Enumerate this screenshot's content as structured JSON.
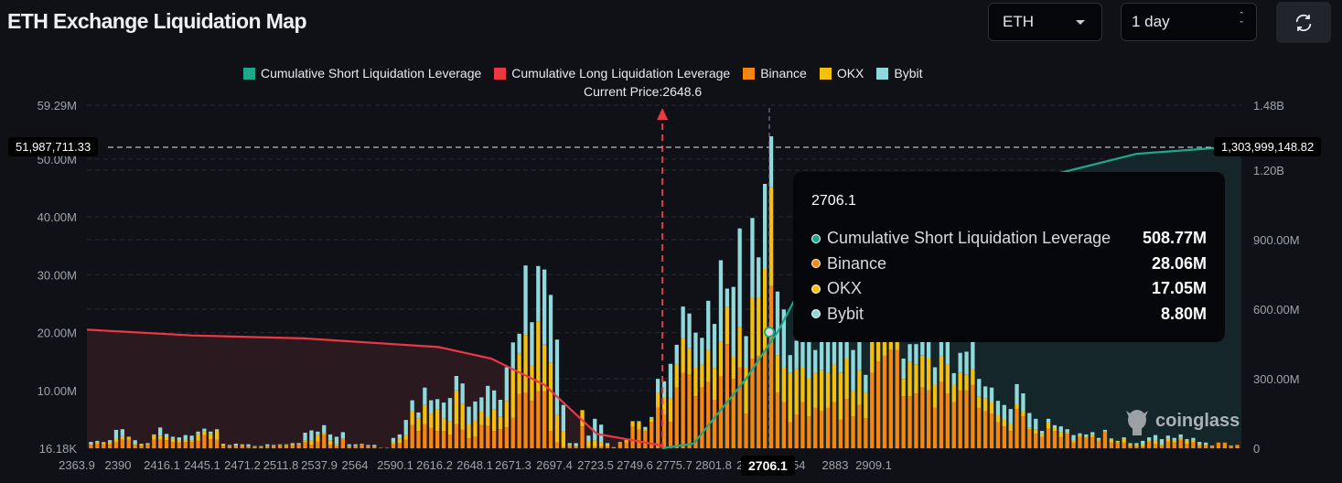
{
  "header": {
    "title": "ETH Exchange Liquidation Map",
    "symbol_select": "ETH",
    "range_select": "1 day",
    "refresh_icon": "refresh-icon"
  },
  "colors": {
    "short": "#1ea88a",
    "long": "#ea3943",
    "binance": "#f7860e",
    "okx": "#f5c00c",
    "bybit": "#8fd8dc",
    "background": "#0f1117"
  },
  "legend": [
    {
      "label": "Cumulative Short Liquidation Leverage",
      "color": "#1ea88a"
    },
    {
      "label": "Cumulative Long Liquidation Leverage",
      "color": "#ea3943"
    },
    {
      "label": "Binance",
      "color": "#f7860e"
    },
    {
      "label": "OKX",
      "color": "#f5c00c"
    },
    {
      "label": "Bybit",
      "color": "#8fd8dc"
    }
  ],
  "current_price_label": "Current Price:2648.6",
  "crosshair": {
    "left_value": "51,987,711.33",
    "right_value": "1,303,999,148.82",
    "x_value": "2706.1"
  },
  "tooltip": {
    "title": "2706.1",
    "rows": [
      {
        "label": "Cumulative Short Liquidation Leverage",
        "value": "508.77M",
        "color": "#1ea88a"
      },
      {
        "label": "Binance",
        "value": "28.06M",
        "color": "#f7860e"
      },
      {
        "label": "OKX",
        "value": "17.05M",
        "color": "#f5c00c"
      },
      {
        "label": "Bybit",
        "value": "8.80M",
        "color": "#8fd8dc"
      }
    ]
  },
  "watermark": "coinglass",
  "chart_data": {
    "type": "bar",
    "title": "ETH Exchange Liquidation Map",
    "xlabel": "Price",
    "ylabel_left": "Liquidation Leverage",
    "ylabel_right": "Cumulative Liquidation Leverage",
    "current_price": 2648.6,
    "x_range": [
      2363.9,
      2935.0
    ],
    "ylim_left": [
      16180,
      59290000
    ],
    "ylim_right": [
      0,
      1480000000
    ],
    "left_ticks": [
      "59.29M",
      "50.00M",
      "40.00M",
      "30.00M",
      "20.00M",
      "10.00M",
      "16.18K"
    ],
    "left_tick_values": [
      59290000,
      50000000,
      40000000,
      30000000,
      20000000,
      10000000,
      16180
    ],
    "right_ticks": [
      "1.48B",
      "1.20B",
      "900.00M",
      "600.00M",
      "300.00M",
      "0"
    ],
    "right_tick_values": [
      1480000000,
      1200000000,
      900000000,
      600000000,
      300000000,
      0
    ],
    "x_ticks": [
      "2363.9",
      "2390",
      "2416.1",
      "2445.1",
      "2471.2",
      "2511.8",
      "2537.9",
      "2564",
      "2590.1",
      "2616.2",
      "2648.1",
      "2671.3",
      "2697.4",
      "2723.5",
      "2749.6",
      "2775.7",
      "2801.8",
      "2827.9",
      "2854",
      "2883",
      "2909.1"
    ],
    "grid": true,
    "legend_position": "top",
    "series_stacked_bars": {
      "binance": [
        0.6,
        0.8,
        0.8,
        0.8,
        1,
        1.5,
        1.5,
        0.6,
        0.5,
        0.6,
        1.5,
        1.5,
        1.4,
        1.1,
        1,
        1.1,
        1.1,
        1.3,
        2.3,
        1.6,
        1.5,
        0.5,
        0.4,
        0.4,
        0.4,
        0.3,
        0.2,
        0.2,
        0.4,
        0.4,
        0.5,
        0.5,
        0.5,
        0.6,
        1,
        0.6,
        1.2,
        2.4,
        0.6,
        0.4,
        1.6,
        0.4,
        0.4,
        0.6,
        0.4,
        0.3,
        0.1,
        0.1,
        0.7,
        0.9,
        1.5,
        4,
        3,
        4.2,
        3.5,
        3,
        3,
        2.4,
        4.2,
        3.2,
        1.7,
        2,
        4,
        3.9,
        3,
        3.3,
        3.6,
        5.3,
        9.4,
        9.6,
        8.2,
        9.9,
        9.9,
        3,
        1,
        0.2,
        0.4,
        0.3,
        3.8,
        0.2,
        0.2,
        0.3,
        0.3,
        0.1,
        0.9,
        1,
        3.7,
        3.2,
        3,
        4.6,
        7,
        5.8,
        4.6,
        10.5,
        13,
        12.8,
        9,
        10.5,
        11.5,
        8.4,
        12.5,
        18,
        12,
        14,
        6,
        15.5,
        16,
        17,
        28.06,
        9.6,
        8,
        4.5,
        5.8,
        8,
        5.5,
        7,
        6.5,
        7,
        8,
        5,
        8.5,
        5.5,
        7.5,
        5.2,
        13,
        15,
        16,
        17,
        17,
        9,
        9,
        9.5,
        10.5,
        10,
        7,
        11.5,
        9.5,
        8,
        10,
        10,
        11,
        7,
        6.5,
        6,
        4.5,
        3.8,
        3,
        6.8,
        5.5,
        3.2,
        2.5,
        2,
        3.4,
        3,
        2,
        2.5,
        1,
        2,
        1.8,
        2,
        1.3,
        2.8,
        1,
        1,
        1,
        0.4,
        0.3,
        0.3,
        1.2,
        0.8,
        0.5,
        1.2,
        1,
        1.5,
        0.8,
        1,
        0.5,
        0.5,
        0.5,
        1,
        1,
        0.5,
        0.6
      ],
      "okx": [
        0.2,
        0.2,
        0.2,
        0.3,
        0.6,
        0.6,
        0.4,
        0.2,
        0.2,
        0.2,
        0.7,
        0.7,
        0.6,
        0.5,
        0.3,
        0.4,
        0.3,
        1.2,
        0.6,
        0.9,
        1.6,
        0.2,
        0.1,
        0.1,
        0.2,
        0.1,
        0.1,
        0.1,
        0.1,
        0.1,
        0.1,
        0.1,
        0.3,
        0.2,
        0.4,
        0.7,
        1.1,
        0.2,
        0.8,
        0.3,
        0.1,
        0.1,
        0.1,
        0.1,
        0.1,
        0.1,
        0,
        0,
        0.3,
        0.8,
        0.8,
        2.5,
        2.2,
        3.3,
        2.5,
        3.7,
        2.1,
        2.3,
        5.8,
        4.5,
        2.5,
        2.8,
        2.5,
        1.5,
        3.7,
        2.2,
        4.6,
        8,
        7,
        10,
        6.2,
        12,
        8,
        11.8,
        4.8,
        2.8,
        0.2,
        0.1,
        2.8,
        1,
        1.2,
        0.8,
        0.5,
        0.1,
        0.1,
        0.3,
        1,
        1.3,
        0.2,
        0.5,
        2.6,
        3,
        4,
        4,
        6,
        4.5,
        5,
        4,
        5.5,
        5.5,
        6,
        6.5,
        3.9,
        7,
        8,
        10.5,
        10,
        14,
        17.05,
        6.5,
        6,
        8.6,
        8,
        6,
        6.7,
        6,
        7,
        6,
        6.5,
        8,
        7,
        4.5,
        6,
        4.5,
        6.5,
        5,
        6,
        5,
        4.5,
        3,
        6,
        5,
        5.5,
        5.5,
        4,
        4.5,
        5,
        3,
        3,
        2.7,
        2.7,
        2,
        2.2,
        2,
        1.2,
        1.2,
        1.3,
        0.8,
        1,
        0.4,
        0.8,
        0.5,
        1.2,
        0.5,
        0.8,
        0.3,
        0.3,
        0.3,
        0.2,
        0.3,
        0.2,
        0.1,
        0.5,
        0.2,
        0.6,
        0.3,
        0.3,
        0.5,
        0.2,
        0.5,
        0.3,
        0.5,
        0.3,
        0.3,
        0.5,
        0.3,
        0.3,
        0.3
      ],
      "bybit": [
        0.3,
        0.3,
        0.1,
        0.3,
        1.6,
        1.2,
        0.1,
        0.6,
        0.1,
        0.1,
        0.2,
        1.4,
        0.5,
        0.4,
        0.6,
        0.8,
        0.8,
        0.4,
        0.5,
        0.4,
        0.2,
        0.1,
        0.1,
        0.3,
        0.1,
        0.3,
        0.1,
        0.1,
        0.2,
        0.1,
        0.1,
        0.1,
        0.1,
        0.1,
        1.3,
        1.8,
        0.6,
        1.4,
        1,
        1.3,
        1.1,
        0.2,
        0.2,
        0.1,
        0.1,
        0.2,
        0,
        0,
        0.8,
        0.7,
        2.6,
        1.8,
        1,
        3,
        2.3,
        1.8,
        2.8,
        4,
        2.5,
        3.5,
        3,
        3.3,
        2.3,
        5.4,
        3.3,
        2.9,
        5.8,
        5,
        3.4,
        12,
        7.4,
        9.6,
        13,
        11.7,
        13,
        4.5,
        0.3,
        0.5,
        0,
        1,
        3.7,
        3,
        0.1,
        0,
        0.1,
        0.2,
        0,
        0.2,
        0.5,
        0.3,
        2.4,
        2.8,
        6,
        3.4,
        5.5,
        6,
        6,
        4.6,
        8.5,
        7.6,
        14,
        3.1,
        12,
        17,
        5.4,
        13.8,
        7,
        14.7,
        8.8,
        11,
        10,
        3,
        4.8,
        12.6,
        10.3,
        4,
        11,
        9.5,
        10,
        8,
        8,
        7,
        11,
        3,
        9,
        7,
        8,
        4,
        5,
        3.5,
        3,
        3.5,
        3.5,
        5,
        3,
        3,
        4,
        2,
        3.5,
        4,
        5.5,
        3,
        2,
        2.5,
        2.5,
        2.5,
        2.5,
        3.5,
        3,
        2.5,
        1.8,
        0.5,
        0.5,
        0.5,
        1,
        0.5,
        1,
        0.3,
        0.4,
        0.5,
        0.3,
        0.3,
        0.2,
        0.1,
        0.3,
        0.2,
        0.3,
        0.5,
        0.5,
        1,
        0.8,
        0.5,
        0.5,
        0.6,
        0.3,
        0.5,
        0.3,
        0.2,
        0.3,
        0.2,
        0.1
      ]
    },
    "cumulative_long_approx": [
      [
        2363.9,
        20500000
      ],
      [
        2416.1,
        19500000
      ],
      [
        2471.2,
        19000000
      ],
      [
        2537.9,
        17500000
      ],
      [
        2564,
        15500000
      ],
      [
        2590.1,
        11000000
      ],
      [
        2616.2,
        2500000
      ],
      [
        2648.1,
        500000
      ],
      [
        2648.6,
        0
      ]
    ],
    "cumulative_short_approx": [
      [
        2648.6,
        0
      ],
      [
        2664,
        20000000
      ],
      [
        2690,
        300000000
      ],
      [
        2706.1,
        508770000
      ],
      [
        2723.5,
        800000000
      ],
      [
        2775.7,
        1050000000
      ],
      [
        2827.9,
        1150000000
      ],
      [
        2883,
        1270000000
      ],
      [
        2935,
        1303999148.82
      ]
    ]
  }
}
